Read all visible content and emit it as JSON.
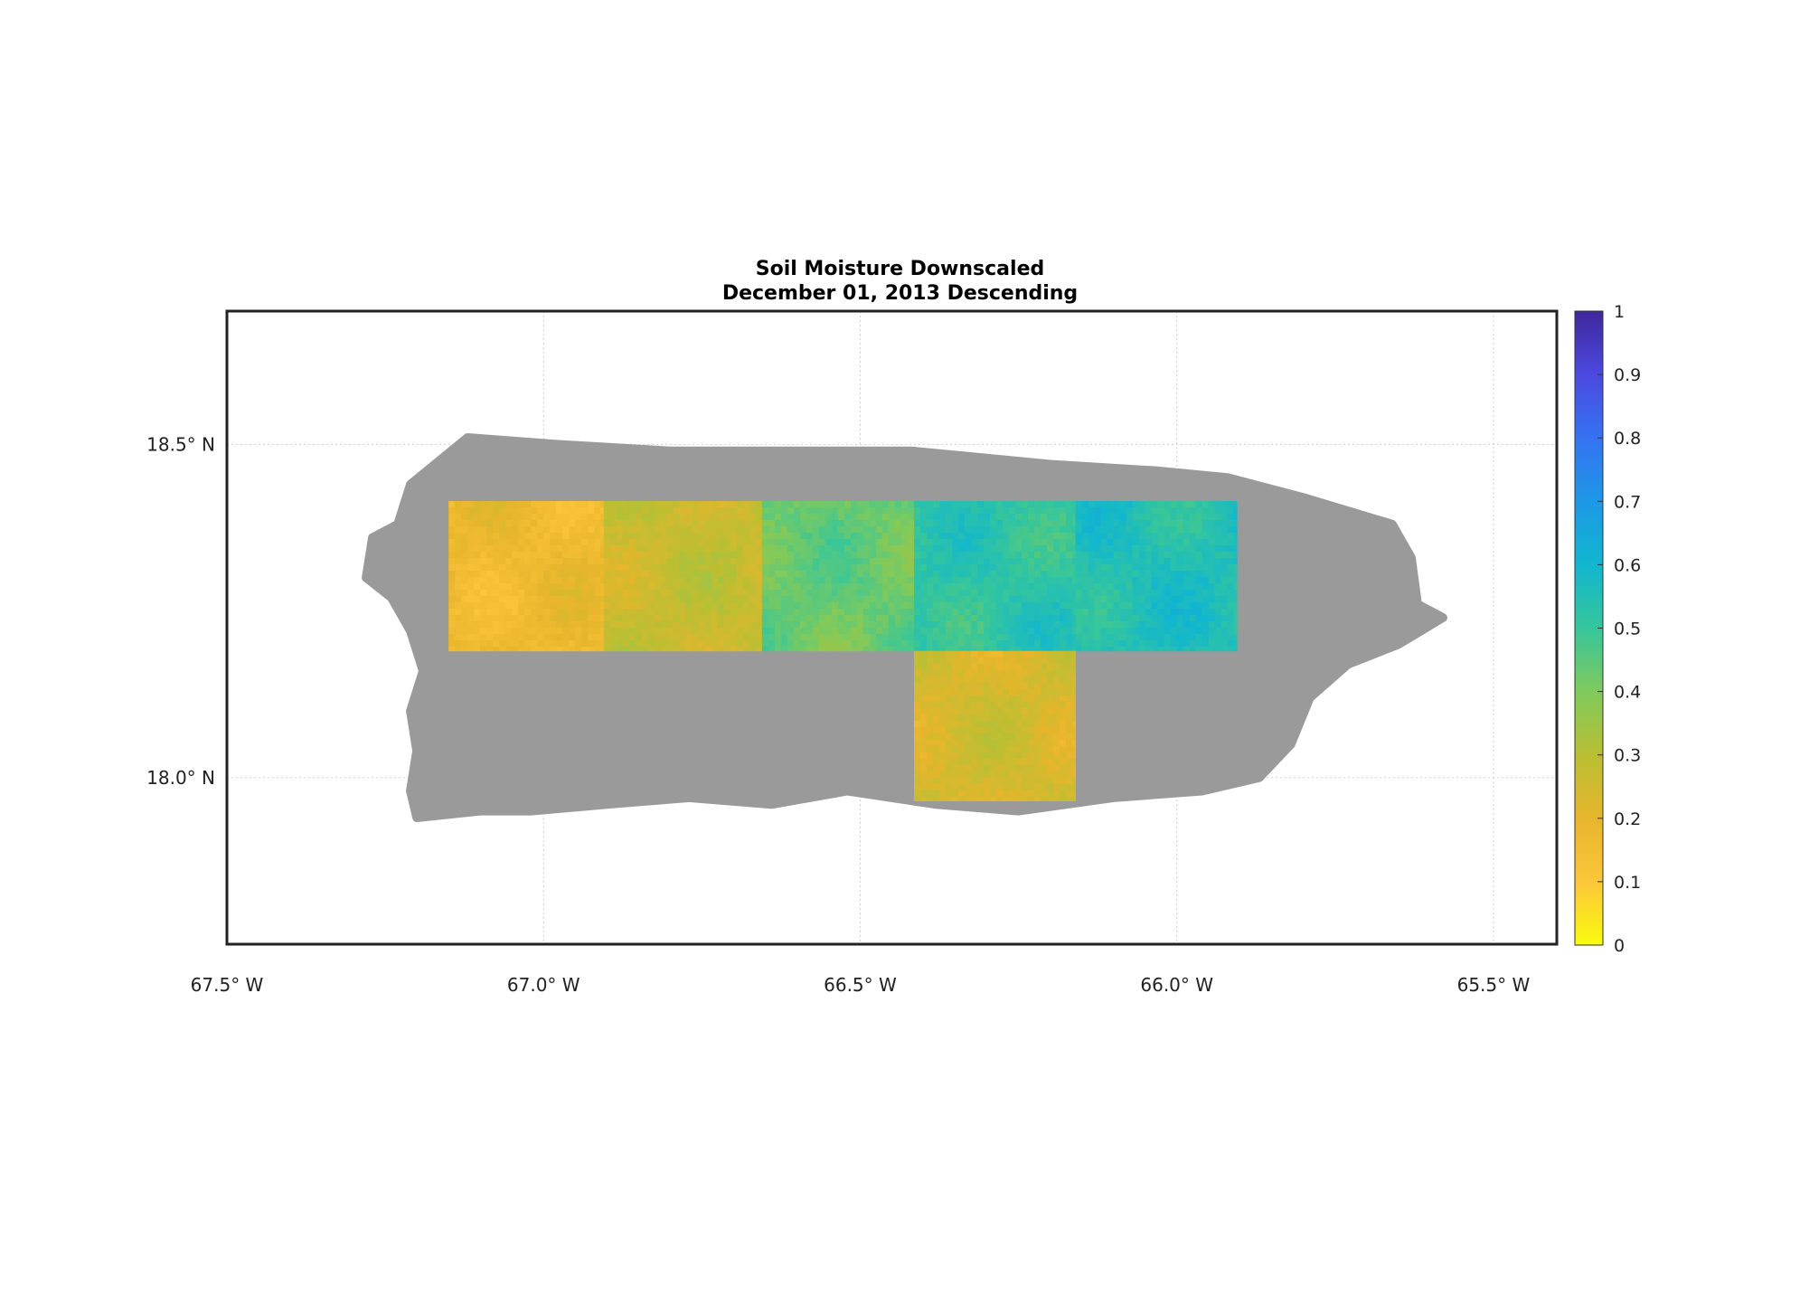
{
  "title": "Soil Moisture Downscaled",
  "subtitle": "December 01, 2013 Descending",
  "map": {
    "lon_range": [
      -67.5,
      -65.4
    ],
    "lat_range": [
      17.75,
      18.7
    ],
    "lon_ticks": [
      {
        "value": -67.5,
        "label": "67.5° W"
      },
      {
        "value": -67.0,
        "label": "67.0° W"
      },
      {
        "value": -66.5,
        "label": "66.5° W"
      },
      {
        "value": -66.0,
        "label": "66.0° W"
      },
      {
        "value": -65.5,
        "label": "65.5° W"
      }
    ],
    "lat_ticks": [
      {
        "value": 18.5,
        "label": "18.5° N"
      },
      {
        "value": 18.0,
        "label": "18.0° N"
      }
    ],
    "grid": true,
    "land_color": "#9a9a9a",
    "coastline_lonlat": [
      [
        -67.21,
        18.44
      ],
      [
        -67.12,
        18.51
      ],
      [
        -66.98,
        18.5
      ],
      [
        -66.8,
        18.49
      ],
      [
        -66.62,
        18.49
      ],
      [
        -66.42,
        18.49
      ],
      [
        -66.2,
        18.47
      ],
      [
        -66.03,
        18.46
      ],
      [
        -65.92,
        18.45
      ],
      [
        -65.8,
        18.42
      ],
      [
        -65.66,
        18.38
      ],
      [
        -65.63,
        18.33
      ],
      [
        -65.62,
        18.26
      ],
      [
        -65.58,
        18.24
      ],
      [
        -65.65,
        18.2
      ],
      [
        -65.73,
        18.17
      ],
      [
        -65.79,
        18.12
      ],
      [
        -65.82,
        18.05
      ],
      [
        -65.87,
        18.0
      ],
      [
        -65.96,
        17.98
      ],
      [
        -66.1,
        17.97
      ],
      [
        -66.25,
        17.95
      ],
      [
        -66.38,
        17.96
      ],
      [
        -66.52,
        17.98
      ],
      [
        -66.64,
        17.96
      ],
      [
        -66.77,
        17.97
      ],
      [
        -66.9,
        17.96
      ],
      [
        -67.02,
        17.95
      ],
      [
        -67.1,
        17.95
      ],
      [
        -67.2,
        17.94
      ],
      [
        -67.21,
        17.98
      ],
      [
        -67.2,
        18.04
      ],
      [
        -67.21,
        18.1
      ],
      [
        -67.19,
        18.16
      ],
      [
        -67.21,
        18.22
      ],
      [
        -67.24,
        18.27
      ],
      [
        -67.28,
        18.3
      ],
      [
        -67.27,
        18.36
      ],
      [
        -67.23,
        18.38
      ]
    ]
  },
  "soil_moisture_tiles": [
    {
      "lon": [
        -67.15,
        -66.905
      ],
      "lat": [
        18.19,
        18.415
      ],
      "mean": 0.17
    },
    {
      "lon": [
        -66.905,
        -66.655
      ],
      "lat": [
        18.19,
        18.415
      ],
      "mean": 0.27
    },
    {
      "lon": [
        -66.655,
        -66.415
      ],
      "lat": [
        18.19,
        18.415
      ],
      "mean": 0.43
    },
    {
      "lon": [
        -66.415,
        -66.16
      ],
      "lat": [
        18.19,
        18.415
      ],
      "mean": 0.52
    },
    {
      "lon": [
        -66.16,
        -65.905
      ],
      "lat": [
        18.19,
        18.415
      ],
      "mean": 0.55
    },
    {
      "lon": [
        -66.415,
        -66.16
      ],
      "lat": [
        17.965,
        18.19
      ],
      "mean": 0.24
    }
  ],
  "colorbar": {
    "min": 0,
    "max": 1,
    "tick_labels": [
      "0",
      "0.1",
      "0.2",
      "0.3",
      "0.4",
      "0.5",
      "0.6",
      "0.7",
      "0.8",
      "0.9",
      "1"
    ],
    "colormap": [
      "#f9fb0e",
      "#fcc63a",
      "#e7b52c",
      "#b9bf33",
      "#7fca5c",
      "#36c69b",
      "#11b6cf",
      "#1d98e6",
      "#3573f3",
      "#4b49e0",
      "#3f279d"
    ]
  }
}
